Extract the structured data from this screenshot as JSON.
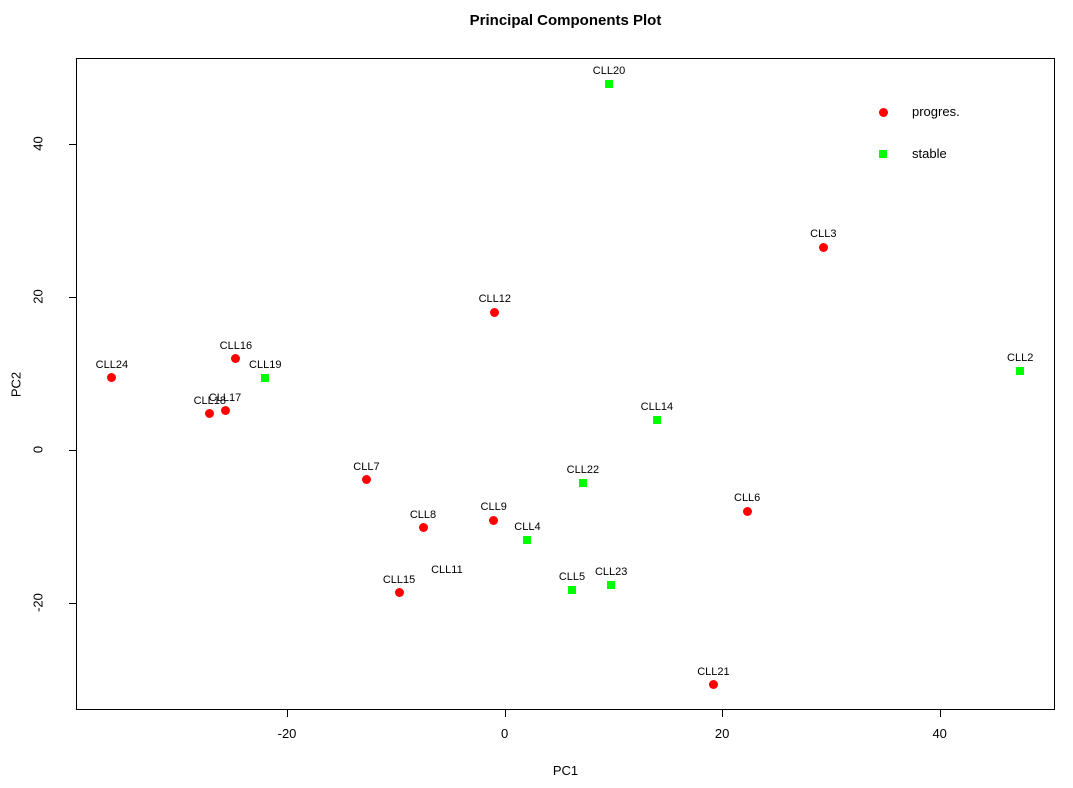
{
  "title": "Principal Components Plot",
  "axes": {
    "xlabel": "PC1",
    "ylabel": "PC2",
    "x_ticks": [
      -20,
      0,
      20,
      40
    ],
    "y_ticks": [
      -20,
      0,
      20,
      40
    ]
  },
  "legend": {
    "items": [
      {
        "label": "progres.",
        "color": "#FF0000",
        "marker": "circle"
      },
      {
        "label": "stable",
        "color": "#00FF00",
        "marker": "square"
      }
    ]
  },
  "colors": {
    "progres": "#FF0000",
    "stable": "#00FF00",
    "axis": "#000000",
    "background": "#FFFFFF"
  },
  "chart_data": {
    "type": "scatter",
    "title": "Principal Components Plot",
    "xlabel": "PC1",
    "ylabel": "PC2",
    "xlim": [
      -39.4,
      50.6
    ],
    "ylim": [
      -34.0,
      51.2
    ],
    "x_ticks": [
      -20,
      0,
      20,
      40
    ],
    "y_ticks": [
      -20,
      0,
      20,
      40
    ],
    "grid": false,
    "legend_position": "top-right",
    "series": [
      {
        "name": "progres.",
        "marker": "circle",
        "color": "#FF0000",
        "points": [
          {
            "label": "CLL24",
            "x": -36.1,
            "y": 9.4
          },
          {
            "label": "CLL16",
            "x": -24.7,
            "y": 11.9
          },
          {
            "label": "CLL18",
            "x": -27.1,
            "y": 4.7
          },
          {
            "label": "CLL17",
            "x": -25.7,
            "y": 5.1
          },
          {
            "label": "CLL7",
            "x": -12.7,
            "y": -3.9
          },
          {
            "label": "CLL8",
            "x": -7.5,
            "y": -10.2
          },
          {
            "label": "CLL15",
            "x": -9.7,
            "y": -18.7
          },
          {
            "label": "CLL11",
            "x": -5.3,
            "y": -17.4,
            "marker_hidden": true
          },
          {
            "label": "CLL9",
            "x": -1.0,
            "y": -9.2
          },
          {
            "label": "CLL12",
            "x": -0.9,
            "y": 18.0
          },
          {
            "label": "CLL6",
            "x": 22.3,
            "y": -8.0
          },
          {
            "label": "CLL3",
            "x": 29.3,
            "y": 26.5
          },
          {
            "label": "CLL21",
            "x": 19.2,
            "y": -30.7
          }
        ]
      },
      {
        "name": "stable",
        "marker": "square",
        "color": "#00FF00",
        "points": [
          {
            "label": "CLL19",
            "x": -22.0,
            "y": 9.4
          },
          {
            "label": "CLL20",
            "x": 9.6,
            "y": 47.8
          },
          {
            "label": "CLL2",
            "x": 47.4,
            "y": 10.3
          },
          {
            "label": "CLL14",
            "x": 14.0,
            "y": 3.9
          },
          {
            "label": "CLL22",
            "x": 7.2,
            "y": -4.4
          },
          {
            "label": "CLL4",
            "x": 2.1,
            "y": -11.8
          },
          {
            "label": "CLL5",
            "x": 6.2,
            "y": -18.3
          },
          {
            "label": "CLL23",
            "x": 9.8,
            "y": -17.7
          }
        ]
      }
    ]
  }
}
